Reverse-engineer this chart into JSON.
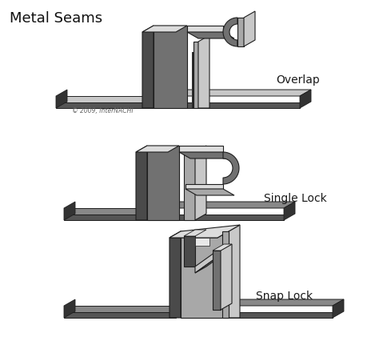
{
  "title": "Metal Seams",
  "copyright": "© 2009, InterNACHI",
  "labels": [
    "Overlap",
    "Single Lock",
    "Snap Lock"
  ],
  "bg_color": "#ffffff",
  "title_fontsize": 13,
  "label_fontsize": 10,
  "c_dark": "#4a4a4a",
  "c_mid": "#717171",
  "c_light": "#a8a8a8",
  "c_lighter": "#c8c8c8",
  "c_lightest": "#dcdcdc",
  "c_edge": "#1e1e1e",
  "c_sheet_top": "#888888",
  "c_sheet_side": "#555555",
  "c_sheet_tip": "#333333"
}
